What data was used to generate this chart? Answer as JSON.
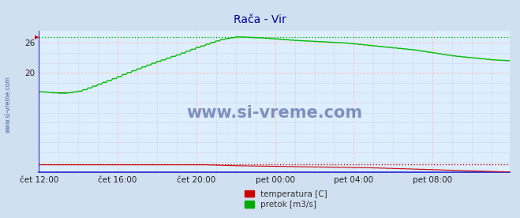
{
  "title": "Rača - Vir",
  "title_color": "#000099",
  "bg_color": "#d0e0f0",
  "plot_bg_color": "#ddeeff",
  "yticks": [
    20,
    26
  ],
  "ylim": [
    0,
    28.5
  ],
  "xlim": [
    0,
    287
  ],
  "xticklabels": [
    "čet 12:00",
    "čet 16:00",
    "čet 20:00",
    "pet 00:00",
    "pet 04:00",
    "pet 08:00"
  ],
  "xtick_positions": [
    0,
    48,
    96,
    144,
    192,
    240
  ],
  "legend_labels": [
    "temperatura [C]",
    "pretok [m3/s]"
  ],
  "legend_colors": [
    "#cc0000",
    "#00aa00"
  ],
  "watermark": "www.si-vreme.com",
  "watermark_color": "#334488",
  "sidebar_text": "www.si-vreme.com",
  "sidebar_color": "#4466aa",
  "green_line_color": "#00bb00",
  "red_line_color": "#cc0000",
  "blue_axis_color": "#2222cc",
  "grid_color_h": "#ffbbbb",
  "grid_color_v": "#ccccdd",
  "dotted_green_max": 27.2,
  "dotted_red_max": 1.55,
  "pretok_knots_x": [
    0,
    8,
    12,
    16,
    20,
    24,
    28,
    32,
    36,
    40,
    44,
    48,
    52,
    56,
    60,
    64,
    68,
    72,
    76,
    80,
    84,
    88,
    92,
    96,
    100,
    104,
    108,
    112,
    116,
    120,
    124,
    128,
    132,
    136,
    140,
    144,
    150,
    156,
    162,
    168,
    174,
    180,
    186,
    192,
    198,
    204,
    210,
    216,
    222,
    228,
    234,
    240,
    246,
    252,
    258,
    264,
    270,
    276,
    282,
    287
  ],
  "pretok_knots_y": [
    16.2,
    16.0,
    15.9,
    15.9,
    16.1,
    16.3,
    16.7,
    17.2,
    17.7,
    18.2,
    18.7,
    19.2,
    19.8,
    20.3,
    20.8,
    21.3,
    21.8,
    22.3,
    22.7,
    23.2,
    23.6,
    24.1,
    24.6,
    25.1,
    25.5,
    26.0,
    26.4,
    26.8,
    27.0,
    27.2,
    27.2,
    27.1,
    27.05,
    27.0,
    26.9,
    26.8,
    26.65,
    26.5,
    26.4,
    26.3,
    26.2,
    26.1,
    26.0,
    25.8,
    25.6,
    25.4,
    25.2,
    25.0,
    24.8,
    24.6,
    24.3,
    24.0,
    23.7,
    23.4,
    23.2,
    23.0,
    22.8,
    22.6,
    22.5,
    22.4
  ],
  "temperatura_knots_x": [
    0,
    30,
    60,
    90,
    96,
    100,
    110,
    120,
    140,
    160,
    180,
    200,
    220,
    240,
    260,
    280,
    287
  ],
  "temperatura_knots_y": [
    1.5,
    1.5,
    1.5,
    1.5,
    1.5,
    1.5,
    1.4,
    1.3,
    1.2,
    1.1,
    1.0,
    0.9,
    0.7,
    0.5,
    0.3,
    0.1,
    0.05
  ]
}
